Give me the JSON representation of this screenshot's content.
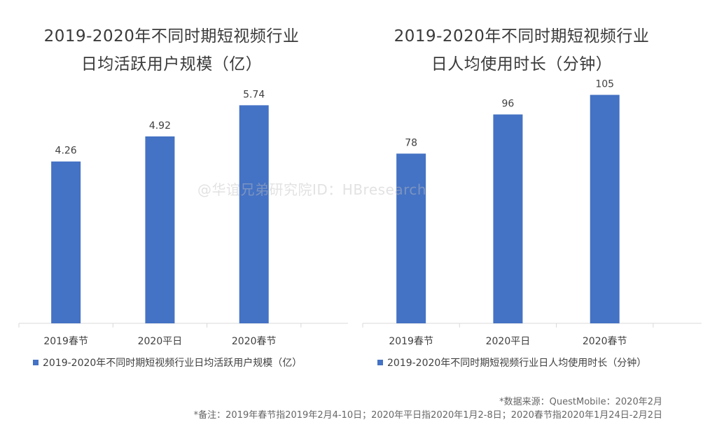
{
  "colors": {
    "bar": "#4472C4",
    "axis": "#d9d9d9",
    "text": "#404040"
  },
  "watermark": "@华谊兄弟研究院ID：HBresearch",
  "chart_data": [
    {
      "type": "bar",
      "title_lines": [
        "2019-2020年不同时期短视频行业",
        "日均活跃用户规模（亿）"
      ],
      "categories": [
        "2019春节",
        "2020平日",
        "2020春节"
      ],
      "series": [
        {
          "name": "2019-2020年不同时期短视频行业日均活跃用户规模（亿）",
          "values": [
            4.26,
            4.92,
            5.74
          ]
        }
      ],
      "data_labels": [
        "4.26",
        "4.92",
        "5.74"
      ],
      "ylim": [
        0,
        6.3
      ],
      "legend": "bottom"
    },
    {
      "type": "bar",
      "title_lines": [
        "2019-2020年不同时期短视频行业",
        "日人均使用时长（分钟）"
      ],
      "categories": [
        "2019春节",
        "2020平日",
        "2020春节"
      ],
      "series": [
        {
          "name": "2019-2020年不同时期短视频行业日人均使用时长（分钟）",
          "values": [
            78,
            96,
            105
          ]
        }
      ],
      "data_labels": [
        "78",
        "96",
        "105"
      ],
      "ylim": [
        0,
        110
      ],
      "legend": "bottom"
    }
  ],
  "notes": {
    "source": "*数据来源：QuestMobile：2020年2月",
    "remark": "*备注：2019年春节指2019年2月4-10日；2020年平日指2020年1月2-8日；2020春节指2020年1月24日-2月2日"
  }
}
